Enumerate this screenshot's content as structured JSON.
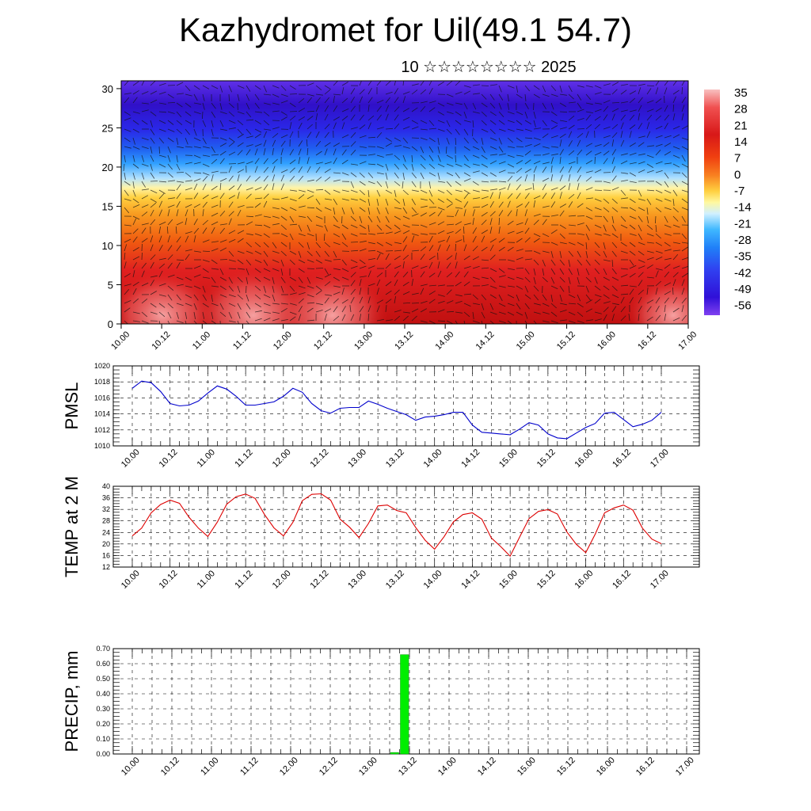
{
  "title": "Kazhydromet for Uil(49.1 54.7)",
  "subtitle": "10 ☆☆☆☆☆☆☆☆ 2025",
  "time_labels": [
    "10.00",
    "10.12",
    "11.00",
    "11.12",
    "12.00",
    "12.12",
    "13.00",
    "13.12",
    "14.00",
    "14.12",
    "15.00",
    "15.12",
    "16.00",
    "16.12",
    "17.00"
  ],
  "chart_data": [
    {
      "type": "heatmap",
      "name": "cross-section",
      "y_ticks": [
        0,
        5,
        10,
        15,
        20,
        25,
        30
      ],
      "ylim": [
        0,
        31
      ],
      "colorbar_labels": [
        "35",
        "28",
        "21",
        "14",
        "7",
        "0",
        "-7",
        "-14",
        "-21",
        "-28",
        "-35",
        "-42",
        "-49",
        "-56"
      ],
      "colorbar_range": [
        -63,
        42
      ]
    },
    {
      "type": "line",
      "ylabel": "PMSL",
      "ylim": [
        1010,
        1020
      ],
      "y_ticks": [
        1010,
        1012,
        1014,
        1016,
        1018,
        1020
      ],
      "color": "#0000cc",
      "x_hours": [
        0,
        3,
        6,
        9,
        12,
        15,
        18,
        21,
        24,
        27,
        30,
        33,
        36,
        39,
        42,
        45,
        48,
        51,
        54,
        57,
        60,
        63,
        66,
        69,
        72,
        75,
        78,
        81,
        84,
        87,
        90,
        93,
        96,
        99,
        102,
        105,
        108,
        111,
        114,
        117,
        120,
        123,
        126,
        129,
        132,
        135,
        138,
        141,
        144,
        147,
        150,
        153,
        156,
        159,
        162,
        165,
        168
      ],
      "values": [
        1017.2,
        1018.1,
        1017.9,
        1016.8,
        1015.3,
        1015.0,
        1015.1,
        1015.6,
        1016.6,
        1017.5,
        1017.1,
        1016.2,
        1015.1,
        1015.1,
        1015.3,
        1015.5,
        1016.2,
        1017.2,
        1016.7,
        1015.3,
        1014.4,
        1014.1,
        1014.7,
        1014.8,
        1014.8,
        1015.6,
        1015.2,
        1014.7,
        1014.3,
        1013.9,
        1013.2,
        1013.6,
        1013.7,
        1013.9,
        1014.2,
        1014.2,
        1012.6,
        1011.7,
        1011.6,
        1011.5,
        1011.4,
        1012.1,
        1012.9,
        1012.6,
        1011.5,
        1011.0,
        1010.9,
        1011.6,
        1012.3,
        1012.8,
        1014.1,
        1014.2,
        1013.3,
        1012.4,
        1012.7,
        1013.2,
        1014.2
      ]
    },
    {
      "type": "line",
      "ylabel": "TEMP at 2 M",
      "ylim": [
        12,
        40
      ],
      "y_ticks": [
        12,
        16,
        20,
        24,
        28,
        32,
        36,
        40
      ],
      "color": "#dd0000",
      "x_hours": [
        0,
        3,
        6,
        9,
        12,
        15,
        18,
        21,
        24,
        27,
        30,
        33,
        36,
        39,
        42,
        45,
        48,
        51,
        54,
        57,
        60,
        63,
        66,
        69,
        72,
        75,
        78,
        81,
        84,
        87,
        90,
        93,
        96,
        99,
        102,
        105,
        108,
        111,
        114,
        117,
        120,
        123,
        126,
        129,
        132,
        135,
        138,
        141,
        144,
        147,
        150,
        153,
        156,
        159,
        162,
        165,
        168
      ],
      "values": [
        22.8,
        25.5,
        30.8,
        33.7,
        35.2,
        34.1,
        29.3,
        25.5,
        22.6,
        27.6,
        33.8,
        36.4,
        37.3,
        35.8,
        30.2,
        25.6,
        22.8,
        27.5,
        35.0,
        37.2,
        37.4,
        35.2,
        28.6,
        25.8,
        22.2,
        27.1,
        33.2,
        33.5,
        31.6,
        30.8,
        25.7,
        21.3,
        18.2,
        22.5,
        27.7,
        30.2,
        30.8,
        28.6,
        22.1,
        19.1,
        15.8,
        22.4,
        28.8,
        31.3,
        31.9,
        30.4,
        24.2,
        19.9,
        17.0,
        23.4,
        30.8,
        32.5,
        33.5,
        31.7,
        25.5,
        21.7,
        20.1
      ]
    },
    {
      "type": "bar",
      "ylabel": "PRECIP, mm",
      "ylim": [
        0,
        0.7
      ],
      "y_ticks": [
        "0.00",
        "0.10",
        "0.20",
        "0.30",
        "0.40",
        "0.50",
        "0.60",
        "0.70"
      ],
      "color": "#00ee00",
      "bars": [
        {
          "start_hour": 78,
          "end_hour": 81,
          "value": 0.01
        },
        {
          "start_hour": 81,
          "end_hour": 84,
          "value": 0.66
        }
      ]
    }
  ]
}
